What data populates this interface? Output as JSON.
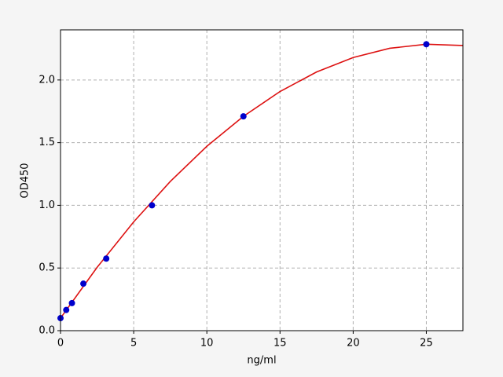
{
  "chart_data": {
    "type": "scatter",
    "xlabel": "ng/ml",
    "ylabel": "OD450",
    "xlim": [
      0,
      27.5
    ],
    "ylim": [
      0,
      2.4
    ],
    "xticks": [
      0,
      5,
      10,
      15,
      20,
      25
    ],
    "yticks": [
      {
        "value": 0,
        "label": "0.0"
      },
      0.5,
      {
        "value": 1,
        "label": "1.0"
      },
      1.5,
      {
        "value": 2,
        "label": "2.0"
      }
    ],
    "grid": true,
    "series": [
      {
        "type": "scatter",
        "color": "#0000cc",
        "x": [
          0,
          0.39,
          0.78,
          1.56,
          3.125,
          6.25,
          12.5,
          25
        ],
        "values": [
          0.1,
          0.165,
          0.22,
          0.375,
          0.575,
          1.0,
          1.71,
          2.285
        ]
      },
      {
        "type": "line",
        "color": "#dd1111",
        "x": [
          0,
          2.5,
          5,
          7.5,
          10,
          12.5,
          15,
          17.5,
          20,
          22.5,
          25,
          27.5
        ],
        "values": [
          0.1,
          0.505,
          0.868,
          1.19,
          1.471,
          1.71,
          1.908,
          2.064,
          2.179,
          2.253,
          2.285,
          2.275
        ]
      }
    ]
  }
}
